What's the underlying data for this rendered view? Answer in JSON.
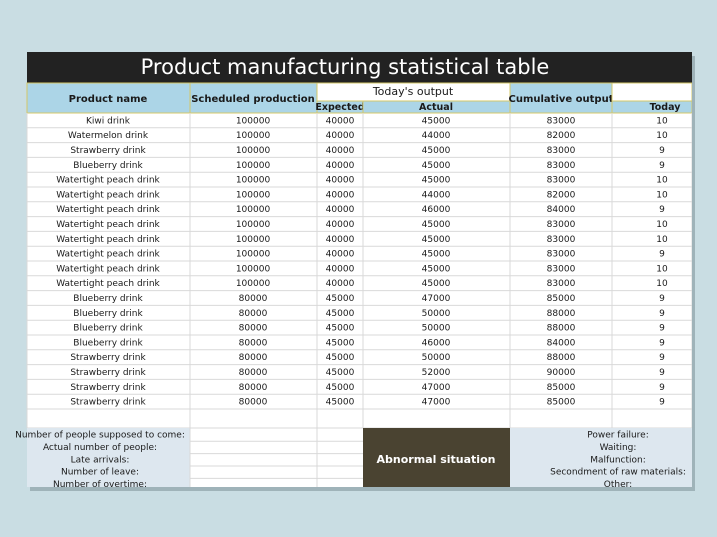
{
  "title": "Product manufacturing statistical table",
  "header": {
    "product_name": "Product name",
    "scheduled_production": "Scheduled production",
    "todays_output": "Today's output",
    "expected": "Expected",
    "actual": "Actual",
    "cumulative_output": "Cumulative output",
    "today": "Today"
  },
  "rows": [
    [
      "Kiwi drink",
      100000,
      40000,
      45000,
      83000,
      10
    ],
    [
      "Watermelon drink",
      100000,
      40000,
      44000,
      82000,
      10
    ],
    [
      "Strawberry drink",
      100000,
      40000,
      45000,
      83000,
      9
    ],
    [
      "Blueberry drink",
      100000,
      40000,
      45000,
      83000,
      9
    ],
    [
      "Watertight peach drink",
      100000,
      40000,
      45000,
      83000,
      10
    ],
    [
      "Watertight peach drink",
      100000,
      40000,
      44000,
      82000,
      10
    ],
    [
      "Watertight peach drink",
      100000,
      40000,
      46000,
      84000,
      9
    ],
    [
      "Watertight peach drink",
      100000,
      40000,
      45000,
      83000,
      10
    ],
    [
      "Watertight peach drink",
      100000,
      40000,
      45000,
      83000,
      10
    ],
    [
      "Watertight peach drink",
      100000,
      40000,
      45000,
      83000,
      9
    ],
    [
      "Watertight peach drink",
      100000,
      40000,
      45000,
      83000,
      10
    ],
    [
      "Watertight peach drink",
      100000,
      40000,
      45000,
      83000,
      10
    ],
    [
      "Blueberry drink",
      80000,
      45000,
      47000,
      85000,
      9
    ],
    [
      "Blueberry drink",
      80000,
      45000,
      50000,
      88000,
      9
    ],
    [
      "Blueberry drink",
      80000,
      45000,
      50000,
      88000,
      9
    ],
    [
      "Blueberry drink",
      80000,
      45000,
      46000,
      84000,
      9
    ],
    [
      "Strawberry drink",
      80000,
      45000,
      50000,
      88000,
      9
    ],
    [
      "Strawberry drink",
      80000,
      45000,
      52000,
      90000,
      9
    ],
    [
      "Strawberry drink",
      80000,
      45000,
      47000,
      85000,
      9
    ],
    [
      "Strawberry drink",
      80000,
      45000,
      47000,
      85000,
      9
    ]
  ],
  "footer": {
    "left_labels": [
      "Number of people supposed to come:",
      "Actual number of people:",
      "Late arrivals:",
      "Number of leave:",
      "Number of overtime:"
    ],
    "abnormal": "Abnormal situation",
    "right_labels": [
      "Power failure:",
      "Waiting:",
      "Malfunction:",
      "Secondment of raw materials:",
      "Other:"
    ]
  }
}
